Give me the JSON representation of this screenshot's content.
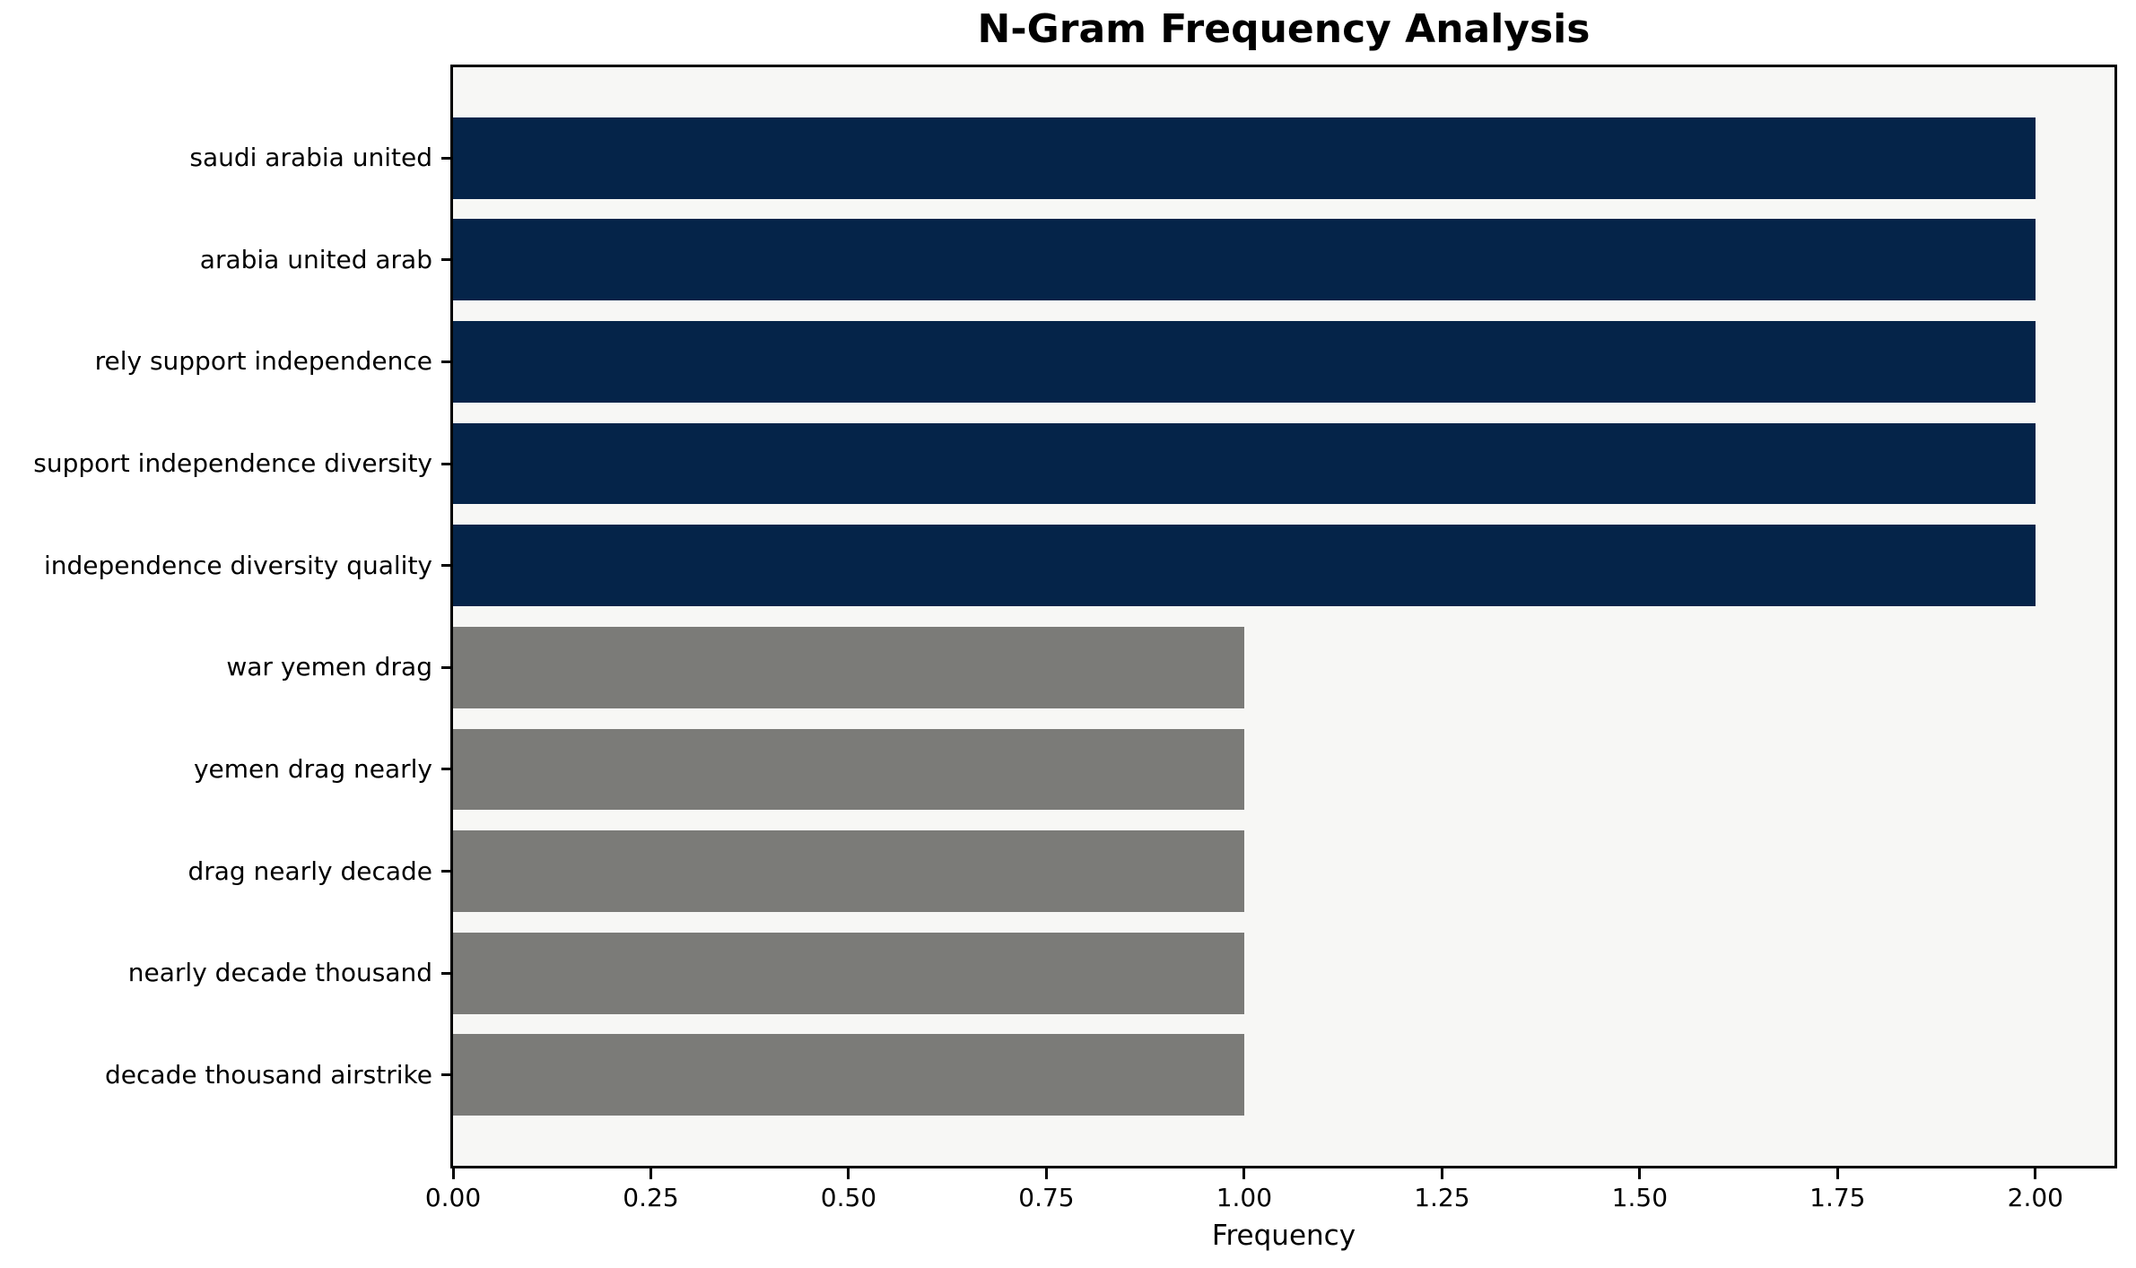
{
  "chart_data": {
    "type": "bar",
    "orientation": "horizontal",
    "title": "N-Gram Frequency Analysis",
    "xlabel": "Frequency",
    "ylabel": "",
    "categories": [
      "saudi arabia united",
      "arabia united arab",
      "rely support independence",
      "support independence diversity",
      "independence diversity quality",
      "war yemen drag",
      "yemen drag nearly",
      "drag nearly decade",
      "nearly decade thousand",
      "decade thousand airstrike"
    ],
    "values": [
      2,
      2,
      2,
      2,
      2,
      1,
      1,
      1,
      1,
      1
    ],
    "bar_colors": [
      "#052449",
      "#052449",
      "#052449",
      "#052449",
      "#052449",
      "#7b7b78",
      "#7b7b78",
      "#7b7b78",
      "#7b7b78",
      "#7b7b78"
    ],
    "xlim": [
      0,
      2.1
    ],
    "xticks": [
      0,
      0.25,
      0.5,
      0.75,
      1.0,
      1.25,
      1.5,
      1.75,
      2.0
    ],
    "xtick_labels": [
      "0.00",
      "0.25",
      "0.50",
      "0.75",
      "1.00",
      "1.25",
      "1.50",
      "1.75",
      "2.00"
    ],
    "bar_height_fraction": 0.8,
    "grid": false,
    "legend": null,
    "colors": {
      "high_frequency_bar": "#052449",
      "low_frequency_bar": "#7b7b78",
      "plot_background": "#f7f7f5",
      "figure_background": "#ffffff",
      "spine": "#000000",
      "text": "#000000"
    }
  }
}
